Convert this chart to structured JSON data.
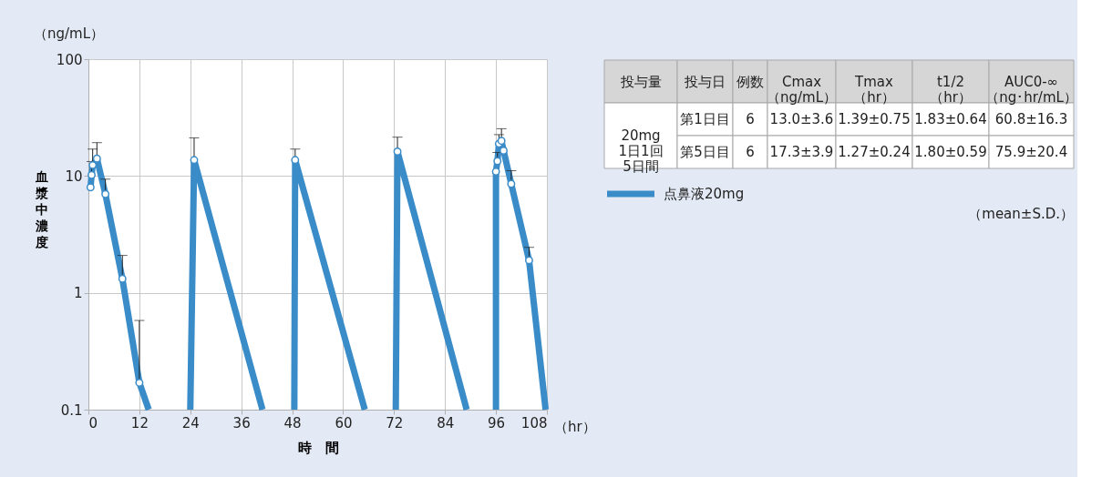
{
  "chart_data": [
    {
      "type": "line",
      "ylabel": "血漿中濃度",
      "xlabel": "時　間",
      "annotations": [
        "（ng/mL）",
        "（hr）"
      ],
      "xlim": [
        0,
        108
      ],
      "xticks": [
        0,
        12,
        24,
        36,
        48,
        60,
        72,
        84,
        96,
        108
      ],
      "ylim": [
        0.1,
        100
      ],
      "yticks": [
        0.1,
        1,
        10,
        100
      ],
      "log": "y",
      "grid": true,
      "legend": "right",
      "line_style": "solid",
      "series": [
        {
          "color": "#3a8cc9",
          "marker": "none",
          "x": [
            12,
            14.2,
            18,
            24,
            24.9,
            41,
            44,
            48.5,
            48.7,
            65.1,
            68,
            72.4,
            72.8,
            89.1,
            92,
            96,
            96,
            100,
            103.8,
            107.7
          ],
          "values": [
            0.17,
            0.1,
            null,
            0.1,
            13.7,
            0.1,
            null,
            0.1,
            13.7,
            0.1,
            null,
            0.1,
            16.2,
            0.1,
            null,
            0.1,
            10.9,
            null,
            1.9,
            0.1
          ]
        },
        {
          "name": "点鼻液20mg",
          "color": "#3a8cc9",
          "marker": "circle",
          "x": [
            0.5,
            0.75,
            1,
            2,
            4,
            8,
            12,
            18,
            24.9,
            36,
            48.7,
            60,
            72.8,
            84,
            96.0,
            96.35,
            96.7,
            97.3,
            97.8,
            99.6,
            103.8
          ],
          "values": [
            8.0,
            10.2,
            12.4,
            14.1,
            7.0,
            1.32,
            0.17,
            null,
            13.7,
            null,
            13.7,
            null,
            16.2,
            null,
            10.9,
            13.4,
            18.9,
            20.0,
            16.5,
            8.56,
            1.9
          ],
          "errors": [
            null,
            [
              10.2,
              13.3
            ],
            [
              12.4,
              17.0
            ],
            [
              14.1,
              19.3
            ],
            [
              7.0,
              9.4
            ],
            [
              1.32,
              2.09
            ],
            [
              0.17,
              0.58
            ],
            null,
            [
              13.7,
              21.2
            ],
            null,
            [
              13.7,
              17.0
            ],
            null,
            [
              16.2,
              21.5
            ],
            null,
            null,
            [
              13.4,
              15.9
            ],
            [
              18.9,
              22.6
            ],
            [
              20.0,
              25.4
            ],
            null,
            [
              8.56,
              11.1
            ],
            [
              1.9,
              2.45
            ]
          ]
        }
      ]
    },
    {
      "type": "other",
      "categories": [
        "投与量",
        "投与日",
        "例数",
        "Cmax\n（ng/mL）",
        "Tmax\n（hr）",
        "t1/2\n（hr）",
        "AUC0-∞\n（ng･hr/mL）"
      ],
      "cell_labels": [
        [
          "20mg\n1日1回\n5日間",
          "第1日目",
          "6",
          "13.0±3.6",
          "1.39±0.75",
          "1.83±0.64",
          "60.8±16.3"
        ],
        [
          null,
          "第5日目",
          "6",
          "17.3±3.9",
          "1.27±0.24",
          "1.80±0.59",
          "75.9±20.4"
        ]
      ],
      "annotations": [
        "（mean±S.D.）"
      ]
    }
  ]
}
